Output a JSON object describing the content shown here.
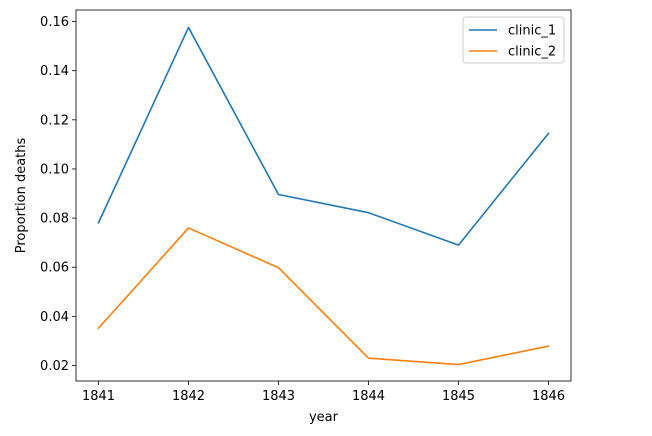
{
  "chart_data": {
    "type": "line",
    "title": "",
    "xlabel": "year",
    "ylabel": "Proportion deaths",
    "x": [
      1841,
      1842,
      1843,
      1844,
      1845,
      1846
    ],
    "x_tick_labels": [
      "1841",
      "1842",
      "1843",
      "1844",
      "1845",
      "1846"
    ],
    "y_ticks": [
      0.02,
      0.04,
      0.06,
      0.08,
      0.1,
      0.12,
      0.14,
      0.16
    ],
    "y_tick_labels": [
      "0.02",
      "0.04",
      "0.06",
      "0.08",
      "0.10",
      "0.12",
      "0.14",
      "0.16"
    ],
    "xlim": [
      1840.75,
      1846.25
    ],
    "ylim": [
      0.0137,
      0.1647
    ],
    "grid": false,
    "legend_position": "top-right",
    "series": [
      {
        "name": "clinic_1",
        "color": "#1f77b4",
        "values": [
          0.0781,
          0.1576,
          0.0896,
          0.0822,
          0.069,
          0.1145
        ]
      },
      {
        "name": "clinic_2",
        "color": "#ff7f0e",
        "values": [
          0.0352,
          0.076,
          0.0598,
          0.023,
          0.0204,
          0.0279
        ]
      }
    ]
  }
}
